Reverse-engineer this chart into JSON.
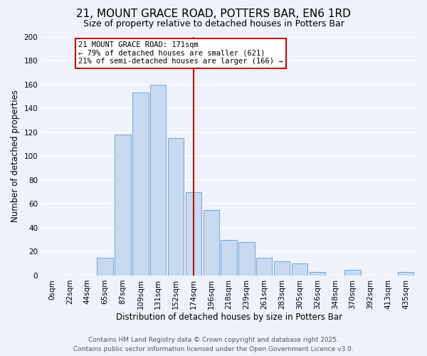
{
  "title": "21, MOUNT GRACE ROAD, POTTERS BAR, EN6 1RD",
  "subtitle": "Size of property relative to detached houses in Potters Bar",
  "xlabel": "Distribution of detached houses by size in Potters Bar",
  "ylabel": "Number of detached properties",
  "bar_labels": [
    "0sqm",
    "22sqm",
    "44sqm",
    "65sqm",
    "87sqm",
    "109sqm",
    "131sqm",
    "152sqm",
    "174sqm",
    "196sqm",
    "218sqm",
    "239sqm",
    "261sqm",
    "283sqm",
    "305sqm",
    "326sqm",
    "348sqm",
    "370sqm",
    "392sqm",
    "413sqm",
    "435sqm"
  ],
  "bar_values": [
    0,
    0,
    0,
    15,
    118,
    153,
    160,
    115,
    70,
    55,
    30,
    28,
    15,
    12,
    10,
    3,
    0,
    5,
    0,
    0,
    3
  ],
  "bar_color": "#c8d9f0",
  "bar_edge_color": "#5b9bd5",
  "vline_x": 8,
  "vline_color": "#cc0000",
  "annotation_title": "21 MOUNT GRACE ROAD: 171sqm",
  "annotation_line1": "← 79% of detached houses are smaller (621)",
  "annotation_line2": "21% of semi-detached houses are larger (166) →",
  "annotation_box_facecolor": "#ffffff",
  "annotation_box_edgecolor": "#cc0000",
  "ylim": [
    0,
    200
  ],
  "yticks": [
    0,
    20,
    40,
    60,
    80,
    100,
    120,
    140,
    160,
    180,
    200
  ],
  "footer_line1": "Contains HM Land Registry data © Crown copyright and database right 2025.",
  "footer_line2": "Contains public sector information licensed under the Open Government Licence v3.0.",
  "bg_color": "#eef2fa",
  "plot_bg_color": "#eef2fa",
  "grid_color": "#ffffff",
  "title_fontsize": 11,
  "subtitle_fontsize": 9,
  "axis_label_fontsize": 8.5,
  "tick_fontsize": 7.5,
  "annotation_fontsize": 7.5,
  "footer_fontsize": 6.5
}
